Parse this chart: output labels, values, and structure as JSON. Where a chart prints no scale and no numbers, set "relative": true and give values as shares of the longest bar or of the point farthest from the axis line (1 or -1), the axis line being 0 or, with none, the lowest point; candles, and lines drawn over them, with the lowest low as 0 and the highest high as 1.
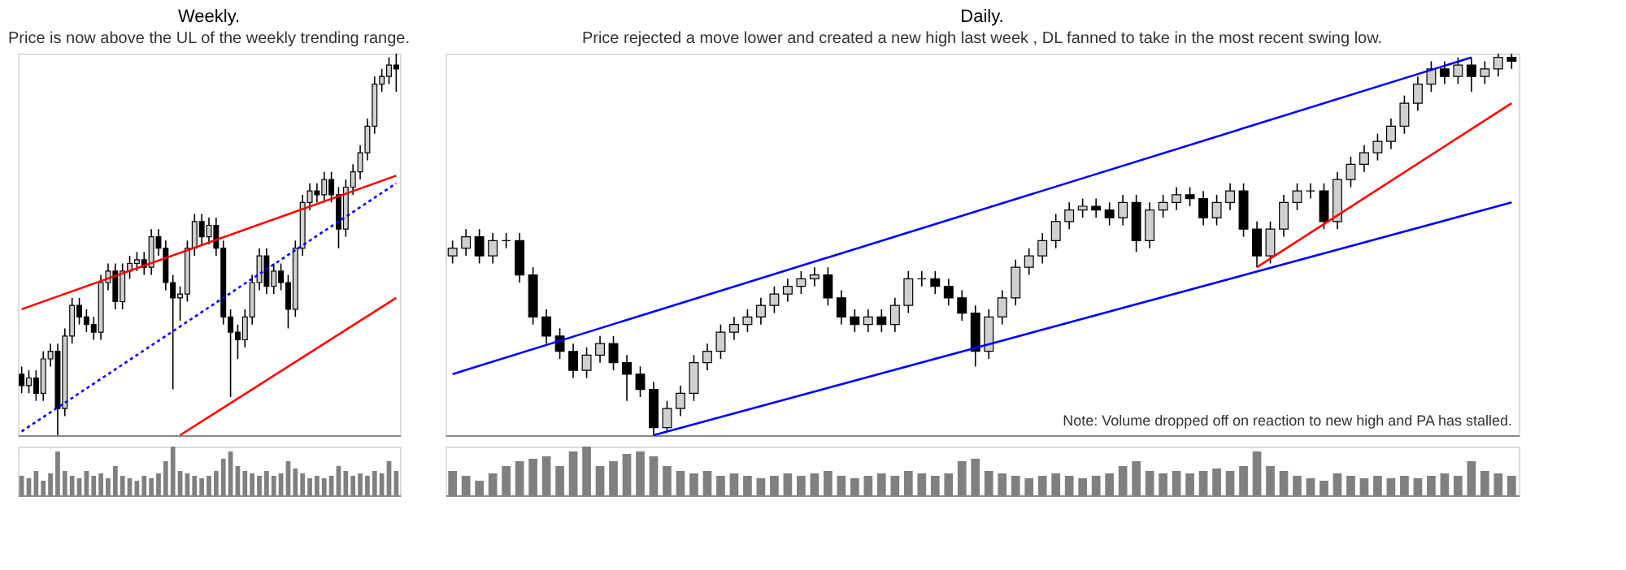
{
  "chart_data": [
    {
      "type": "candlestick",
      "title": "Weekly.",
      "subtitle": "Price is now above the UL of the weekly trending range.",
      "relative": true,
      "tick_labels": false,
      "grid": false,
      "categories": [
        null,
        null,
        null,
        null,
        null,
        null,
        null,
        null,
        null,
        null,
        null,
        null,
        null,
        null,
        null,
        null,
        null,
        null,
        null,
        null,
        null,
        null,
        null,
        null,
        null,
        null,
        null,
        null,
        null,
        null,
        null,
        null,
        null,
        null,
        null,
        null,
        null,
        null,
        null,
        null,
        null,
        null,
        null,
        null,
        null,
        null,
        null,
        null,
        null,
        null,
        null,
        null,
        null
      ],
      "ohlc": [
        [
          0.16,
          0.18,
          0.11,
          0.13
        ],
        [
          0.13,
          0.17,
          0.11,
          0.15
        ],
        [
          0.15,
          0.17,
          0.09,
          0.11
        ],
        [
          0.11,
          0.22,
          0.09,
          0.2
        ],
        [
          0.2,
          0.24,
          0.18,
          0.22
        ],
        [
          0.22,
          0.24,
          0.0,
          0.07
        ],
        [
          0.07,
          0.28,
          0.05,
          0.26
        ],
        [
          0.26,
          0.36,
          0.24,
          0.34
        ],
        [
          0.34,
          0.36,
          0.29,
          0.31
        ],
        [
          0.31,
          0.33,
          0.27,
          0.29
        ],
        [
          0.29,
          0.31,
          0.25,
          0.27
        ],
        [
          0.27,
          0.42,
          0.25,
          0.4
        ],
        [
          0.4,
          0.45,
          0.38,
          0.43
        ],
        [
          0.43,
          0.45,
          0.33,
          0.35
        ],
        [
          0.35,
          0.45,
          0.33,
          0.43
        ],
        [
          0.43,
          0.47,
          0.41,
          0.45
        ],
        [
          0.45,
          0.48,
          0.43,
          0.46
        ],
        [
          0.46,
          0.48,
          0.42,
          0.44
        ],
        [
          0.44,
          0.54,
          0.42,
          0.52
        ],
        [
          0.52,
          0.54,
          0.47,
          0.49
        ],
        [
          0.49,
          0.51,
          0.38,
          0.4
        ],
        [
          0.4,
          0.42,
          0.12,
          0.36
        ],
        [
          0.36,
          0.39,
          0.3,
          0.37
        ],
        [
          0.37,
          0.51,
          0.35,
          0.49
        ],
        [
          0.49,
          0.58,
          0.47,
          0.56
        ],
        [
          0.56,
          0.58,
          0.5,
          0.52
        ],
        [
          0.52,
          0.57,
          0.5,
          0.55
        ],
        [
          0.55,
          0.57,
          0.47,
          0.49
        ],
        [
          0.49,
          0.51,
          0.29,
          0.31
        ],
        [
          0.31,
          0.33,
          0.1,
          0.27
        ],
        [
          0.27,
          0.29,
          0.2,
          0.25
        ],
        [
          0.25,
          0.33,
          0.23,
          0.31
        ],
        [
          0.31,
          0.42,
          0.29,
          0.4
        ],
        [
          0.4,
          0.49,
          0.38,
          0.47
        ],
        [
          0.47,
          0.49,
          0.37,
          0.39
        ],
        [
          0.39,
          0.45,
          0.37,
          0.43
        ],
        [
          0.43,
          0.45,
          0.38,
          0.4
        ],
        [
          0.4,
          0.42,
          0.28,
          0.33
        ],
        [
          0.33,
          0.51,
          0.31,
          0.49
        ],
        [
          0.49,
          0.63,
          0.47,
          0.61
        ],
        [
          0.61,
          0.66,
          0.59,
          0.64
        ],
        [
          0.64,
          0.66,
          0.61,
          0.63
        ],
        [
          0.63,
          0.69,
          0.61,
          0.67
        ],
        [
          0.67,
          0.69,
          0.61,
          0.63
        ],
        [
          0.63,
          0.65,
          0.49,
          0.54
        ],
        [
          0.54,
          0.67,
          0.52,
          0.65
        ],
        [
          0.65,
          0.71,
          0.63,
          0.69
        ],
        [
          0.69,
          0.76,
          0.67,
          0.74
        ],
        [
          0.74,
          0.83,
          0.72,
          0.81
        ],
        [
          0.81,
          0.94,
          0.79,
          0.92
        ],
        [
          0.92,
          0.96,
          0.9,
          0.94
        ],
        [
          0.94,
          0.99,
          0.92,
          0.97
        ],
        [
          0.97,
          1.0,
          0.9,
          0.96
        ]
      ],
      "series": [
        {
          "type": "line",
          "color": "#ff0000",
          "line_style": "solid",
          "values": [
            0.33,
            null,
            null,
            null,
            null,
            null,
            null,
            null,
            null,
            null,
            null,
            null,
            null,
            null,
            null,
            null,
            null,
            null,
            null,
            null,
            null,
            null,
            null,
            null,
            null,
            null,
            null,
            null,
            null,
            null,
            null,
            null,
            null,
            null,
            null,
            null,
            null,
            null,
            null,
            null,
            null,
            null,
            null,
            null,
            null,
            null,
            null,
            null,
            null,
            null,
            null,
            null,
            0.68
          ]
        },
        {
          "type": "line",
          "color": "#0000ff",
          "line_style": "dotted",
          "values": [
            0.01,
            null,
            null,
            null,
            null,
            null,
            null,
            null,
            null,
            null,
            null,
            null,
            null,
            null,
            null,
            null,
            null,
            null,
            null,
            null,
            null,
            null,
            null,
            null,
            null,
            null,
            null,
            null,
            null,
            null,
            null,
            null,
            null,
            null,
            null,
            null,
            null,
            null,
            null,
            null,
            null,
            null,
            null,
            null,
            null,
            null,
            null,
            null,
            null,
            null,
            null,
            null,
            0.66
          ]
        },
        {
          "type": "line",
          "color": "#ff0000",
          "line_style": "solid",
          "values": [
            null,
            null,
            null,
            null,
            null,
            null,
            null,
            null,
            null,
            null,
            null,
            null,
            null,
            null,
            null,
            null,
            null,
            null,
            null,
            null,
            null,
            null,
            0.0,
            null,
            null,
            null,
            null,
            null,
            null,
            null,
            null,
            null,
            null,
            null,
            null,
            null,
            null,
            null,
            null,
            null,
            null,
            null,
            null,
            null,
            null,
            null,
            null,
            null,
            null,
            null,
            null,
            null,
            0.36
          ]
        }
      ]
    },
    {
      "type": "bar",
      "relative": true,
      "tick_labels": false,
      "grid": false,
      "color": "#808080",
      "categories": [
        null,
        null,
        null,
        null,
        null,
        null,
        null,
        null,
        null,
        null,
        null,
        null,
        null,
        null,
        null,
        null,
        null,
        null,
        null,
        null,
        null,
        null,
        null,
        null,
        null,
        null,
        null,
        null,
        null,
        null,
        null,
        null,
        null,
        null,
        null,
        null,
        null,
        null,
        null,
        null,
        null,
        null,
        null,
        null,
        null,
        null,
        null,
        null,
        null,
        null,
        null,
        null,
        null
      ],
      "values": [
        0.4,
        0.35,
        0.5,
        0.3,
        0.45,
        0.9,
        0.5,
        0.4,
        0.35,
        0.5,
        0.4,
        0.45,
        0.35,
        0.6,
        0.4,
        0.35,
        0.3,
        0.4,
        0.35,
        0.45,
        0.7,
        1.0,
        0.5,
        0.45,
        0.4,
        0.35,
        0.4,
        0.5,
        0.75,
        0.9,
        0.6,
        0.5,
        0.45,
        0.4,
        0.5,
        0.4,
        0.45,
        0.7,
        0.55,
        0.45,
        0.35,
        0.4,
        0.35,
        0.4,
        0.6,
        0.5,
        0.4,
        0.45,
        0.4,
        0.5,
        0.45,
        0.7,
        0.5
      ]
    },
    {
      "type": "candlestick",
      "title": "Daily.",
      "subtitle": "Price rejected a move lower and created a new high last week , DL fanned to take in the most recent swing low.",
      "annotations": [
        "Note:  Volume dropped off on reaction to new high and PA has stalled."
      ],
      "relative": true,
      "tick_labels": false,
      "grid": false,
      "categories": [
        null,
        null,
        null,
        null,
        null,
        null,
        null,
        null,
        null,
        null,
        null,
        null,
        null,
        null,
        null,
        null,
        null,
        null,
        null,
        null,
        null,
        null,
        null,
        null,
        null,
        null,
        null,
        null,
        null,
        null,
        null,
        null,
        null,
        null,
        null,
        null,
        null,
        null,
        null,
        null,
        null,
        null,
        null,
        null,
        null,
        null,
        null,
        null,
        null,
        null,
        null,
        null,
        null,
        null,
        null,
        null,
        null,
        null,
        null,
        null,
        null,
        null,
        null,
        null,
        null,
        null,
        null,
        null,
        null,
        null,
        null,
        null,
        null,
        null,
        null,
        null,
        null,
        null,
        null,
        null
      ],
      "ohlc": [
        [
          0.47,
          0.51,
          0.45,
          0.49
        ],
        [
          0.49,
          0.54,
          0.47,
          0.52
        ],
        [
          0.52,
          0.54,
          0.45,
          0.47
        ],
        [
          0.47,
          0.53,
          0.45,
          0.51
        ],
        [
          0.51,
          0.53,
          0.49,
          0.51
        ],
        [
          0.51,
          0.53,
          0.4,
          0.42
        ],
        [
          0.42,
          0.44,
          0.29,
          0.31
        ],
        [
          0.31,
          0.33,
          0.24,
          0.26
        ],
        [
          0.26,
          0.28,
          0.2,
          0.22
        ],
        [
          0.22,
          0.24,
          0.15,
          0.17
        ],
        [
          0.17,
          0.23,
          0.15,
          0.21
        ],
        [
          0.21,
          0.26,
          0.19,
          0.24
        ],
        [
          0.24,
          0.26,
          0.17,
          0.19
        ],
        [
          0.19,
          0.21,
          0.09,
          0.16
        ],
        [
          0.16,
          0.18,
          0.1,
          0.12
        ],
        [
          0.12,
          0.14,
          0.0,
          0.02
        ],
        [
          0.02,
          0.09,
          0.01,
          0.07
        ],
        [
          0.07,
          0.13,
          0.05,
          0.11
        ],
        [
          0.11,
          0.21,
          0.09,
          0.19
        ],
        [
          0.19,
          0.24,
          0.17,
          0.22
        ],
        [
          0.22,
          0.29,
          0.2,
          0.27
        ],
        [
          0.27,
          0.31,
          0.25,
          0.29
        ],
        [
          0.29,
          0.33,
          0.27,
          0.31
        ],
        [
          0.31,
          0.36,
          0.29,
          0.34
        ],
        [
          0.34,
          0.39,
          0.32,
          0.37
        ],
        [
          0.37,
          0.41,
          0.35,
          0.39
        ],
        [
          0.39,
          0.43,
          0.37,
          0.41
        ],
        [
          0.41,
          0.44,
          0.39,
          0.42
        ],
        [
          0.42,
          0.44,
          0.34,
          0.36
        ],
        [
          0.36,
          0.38,
          0.29,
          0.31
        ],
        [
          0.31,
          0.33,
          0.27,
          0.29
        ],
        [
          0.29,
          0.33,
          0.27,
          0.31
        ],
        [
          0.31,
          0.33,
          0.27,
          0.29
        ],
        [
          0.29,
          0.36,
          0.27,
          0.34
        ],
        [
          0.34,
          0.43,
          0.32,
          0.41
        ],
        [
          0.41,
          0.43,
          0.39,
          0.41
        ],
        [
          0.41,
          0.43,
          0.37,
          0.39
        ],
        [
          0.39,
          0.41,
          0.34,
          0.36
        ],
        [
          0.36,
          0.38,
          0.3,
          0.32
        ],
        [
          0.32,
          0.34,
          0.18,
          0.22
        ],
        [
          0.22,
          0.33,
          0.2,
          0.31
        ],
        [
          0.31,
          0.38,
          0.29,
          0.36
        ],
        [
          0.36,
          0.46,
          0.34,
          0.44
        ],
        [
          0.44,
          0.49,
          0.42,
          0.47
        ],
        [
          0.47,
          0.53,
          0.45,
          0.51
        ],
        [
          0.51,
          0.58,
          0.49,
          0.56
        ],
        [
          0.56,
          0.61,
          0.54,
          0.59
        ],
        [
          0.59,
          0.62,
          0.57,
          0.6
        ],
        [
          0.6,
          0.62,
          0.57,
          0.59
        ],
        [
          0.59,
          0.61,
          0.55,
          0.57
        ],
        [
          0.57,
          0.63,
          0.55,
          0.61
        ],
        [
          0.61,
          0.63,
          0.48,
          0.51
        ],
        [
          0.51,
          0.61,
          0.49,
          0.59
        ],
        [
          0.59,
          0.63,
          0.57,
          0.61
        ],
        [
          0.61,
          0.65,
          0.59,
          0.63
        ],
        [
          0.63,
          0.65,
          0.6,
          0.62
        ],
        [
          0.62,
          0.64,
          0.55,
          0.57
        ],
        [
          0.57,
          0.63,
          0.55,
          0.61
        ],
        [
          0.61,
          0.66,
          0.59,
          0.64
        ],
        [
          0.64,
          0.66,
          0.52,
          0.54
        ],
        [
          0.54,
          0.56,
          0.44,
          0.47
        ],
        [
          0.47,
          0.56,
          0.45,
          0.54
        ],
        [
          0.54,
          0.63,
          0.52,
          0.61
        ],
        [
          0.61,
          0.66,
          0.59,
          0.64
        ],
        [
          0.64,
          0.66,
          0.62,
          0.64
        ],
        [
          0.64,
          0.66,
          0.54,
          0.56
        ],
        [
          0.56,
          0.69,
          0.54,
          0.67
        ],
        [
          0.67,
          0.73,
          0.65,
          0.71
        ],
        [
          0.71,
          0.76,
          0.69,
          0.74
        ],
        [
          0.74,
          0.79,
          0.72,
          0.77
        ],
        [
          0.77,
          0.83,
          0.75,
          0.81
        ],
        [
          0.81,
          0.89,
          0.79,
          0.87
        ],
        [
          0.87,
          0.94,
          0.85,
          0.92
        ],
        [
          0.92,
          0.98,
          0.9,
          0.96
        ],
        [
          0.96,
          0.98,
          0.92,
          0.94
        ],
        [
          0.94,
          0.99,
          0.92,
          0.97
        ],
        [
          0.97,
          0.99,
          0.9,
          0.94
        ],
        [
          0.94,
          0.98,
          0.92,
          0.96
        ],
        [
          0.96,
          1.0,
          0.94,
          0.99
        ],
        [
          0.99,
          1.0,
          0.96,
          0.98
        ]
      ],
      "series": [
        {
          "type": "line",
          "color": "#0000ff",
          "line_style": "solid",
          "values": [
            0.16,
            null,
            null,
            null,
            null,
            null,
            null,
            null,
            null,
            null,
            null,
            null,
            null,
            null,
            null,
            null,
            null,
            null,
            null,
            null,
            null,
            null,
            null,
            null,
            null,
            null,
            null,
            null,
            null,
            null,
            null,
            null,
            null,
            null,
            null,
            null,
            null,
            null,
            null,
            null,
            null,
            null,
            null,
            null,
            null,
            null,
            null,
            null,
            null,
            null,
            null,
            null,
            null,
            null,
            null,
            null,
            null,
            null,
            null,
            null,
            null,
            null,
            null,
            null,
            null,
            null,
            null,
            null,
            null,
            null,
            null,
            null,
            null,
            null,
            null,
            null,
            0.99,
            null,
            null,
            null
          ]
        },
        {
          "type": "line",
          "color": "#0000ff",
          "line_style": "solid",
          "values": [
            null,
            null,
            null,
            null,
            null,
            null,
            null,
            null,
            null,
            null,
            null,
            null,
            null,
            null,
            null,
            0.0,
            null,
            null,
            null,
            null,
            null,
            null,
            null,
            null,
            null,
            null,
            null,
            null,
            null,
            null,
            null,
            null,
            null,
            null,
            null,
            null,
            null,
            null,
            null,
            null,
            null,
            null,
            null,
            null,
            null,
            null,
            null,
            null,
            null,
            null,
            null,
            null,
            null,
            null,
            null,
            null,
            null,
            null,
            null,
            null,
            null,
            null,
            null,
            null,
            null,
            null,
            null,
            null,
            null,
            null,
            null,
            null,
            null,
            null,
            null,
            null,
            null,
            null,
            null,
            0.61
          ]
        },
        {
          "type": "line",
          "color": "#ff0000",
          "line_style": "solid",
          "values": [
            null,
            null,
            null,
            null,
            null,
            null,
            null,
            null,
            null,
            null,
            null,
            null,
            null,
            null,
            null,
            null,
            null,
            null,
            null,
            null,
            null,
            null,
            null,
            null,
            null,
            null,
            null,
            null,
            null,
            null,
            null,
            null,
            null,
            null,
            null,
            null,
            null,
            null,
            null,
            null,
            null,
            null,
            null,
            null,
            null,
            null,
            null,
            null,
            null,
            null,
            null,
            null,
            null,
            null,
            null,
            null,
            null,
            null,
            null,
            null,
            0.44,
            null,
            null,
            null,
            null,
            null,
            null,
            null,
            null,
            null,
            null,
            null,
            null,
            null,
            null,
            null,
            null,
            null,
            null,
            0.87
          ]
        }
      ]
    },
    {
      "type": "bar",
      "relative": true,
      "tick_labels": false,
      "grid": false,
      "color": "#808080",
      "categories": [
        null,
        null,
        null,
        null,
        null,
        null,
        null,
        null,
        null,
        null,
        null,
        null,
        null,
        null,
        null,
        null,
        null,
        null,
        null,
        null,
        null,
        null,
        null,
        null,
        null,
        null,
        null,
        null,
        null,
        null,
        null,
        null,
        null,
        null,
        null,
        null,
        null,
        null,
        null,
        null,
        null,
        null,
        null,
        null,
        null,
        null,
        null,
        null,
        null,
        null,
        null,
        null,
        null,
        null,
        null,
        null,
        null,
        null,
        null,
        null,
        null,
        null,
        null,
        null,
        null,
        null,
        null,
        null,
        null,
        null,
        null,
        null,
        null,
        null,
        null,
        null,
        null,
        null,
        null,
        null
      ],
      "values": [
        0.5,
        0.4,
        0.3,
        0.45,
        0.6,
        0.7,
        0.75,
        0.8,
        0.6,
        0.9,
        1.0,
        0.6,
        0.7,
        0.85,
        0.9,
        0.8,
        0.6,
        0.5,
        0.45,
        0.5,
        0.4,
        0.45,
        0.4,
        0.35,
        0.4,
        0.45,
        0.4,
        0.45,
        0.5,
        0.4,
        0.35,
        0.4,
        0.45,
        0.4,
        0.5,
        0.45,
        0.4,
        0.45,
        0.7,
        0.75,
        0.5,
        0.45,
        0.4,
        0.35,
        0.4,
        0.45,
        0.4,
        0.35,
        0.4,
        0.45,
        0.6,
        0.7,
        0.5,
        0.45,
        0.5,
        0.45,
        0.5,
        0.55,
        0.5,
        0.6,
        0.9,
        0.6,
        0.5,
        0.4,
        0.35,
        0.3,
        0.45,
        0.4,
        0.35,
        0.4,
        0.35,
        0.4,
        0.35,
        0.4,
        0.45,
        0.4,
        0.7,
        0.5,
        0.45,
        0.4
      ]
    }
  ]
}
